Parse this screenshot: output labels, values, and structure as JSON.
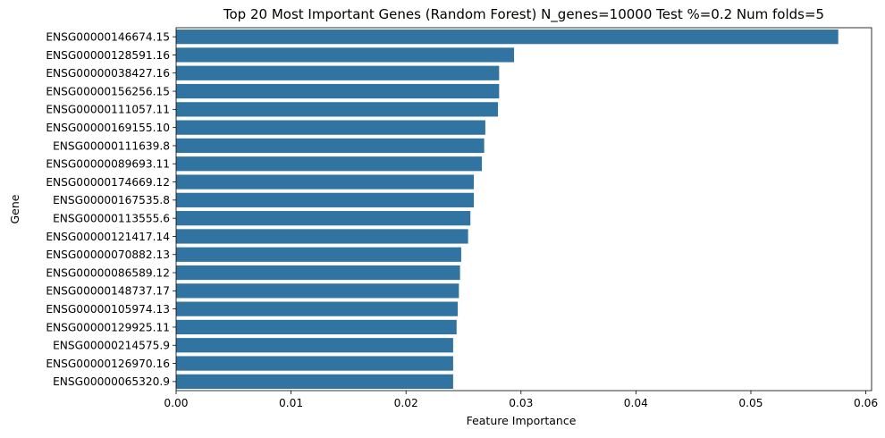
{
  "chart_data": {
    "type": "bar",
    "orientation": "horizontal",
    "title": "Top 20 Most Important Genes (Random Forest) N_genes=10000 Test %=0.2 Num folds=5",
    "xlabel": "Feature Importance",
    "ylabel": "Gene",
    "xlim": [
      0,
      0.0605
    ],
    "xticks": [
      "0.00",
      "0.01",
      "0.02",
      "0.03",
      "0.04",
      "0.05",
      "0.06"
    ],
    "xtick_values": [
      0,
      0.01,
      0.02,
      0.03,
      0.04,
      0.05,
      0.06
    ],
    "bar_color": "#3274a1",
    "grid": false,
    "categories": [
      "ENSG00000146674.15",
      "ENSG00000128591.16",
      "ENSG00000038427.16",
      "ENSG00000156256.15",
      "ENSG00000111057.11",
      "ENSG00000169155.10",
      "ENSG00000111639.8",
      "ENSG00000089693.11",
      "ENSG00000174669.12",
      "ENSG00000167535.8",
      "ENSG00000113555.6",
      "ENSG00000121417.14",
      "ENSG00000070882.13",
      "ENSG00000086589.12",
      "ENSG00000148737.17",
      "ENSG00000105974.13",
      "ENSG00000129925.11",
      "ENSG00000214575.9",
      "ENSG00000126970.16",
      "ENSG00000065320.9"
    ],
    "values": [
      0.0576,
      0.0294,
      0.0281,
      0.0281,
      0.028,
      0.0269,
      0.0268,
      0.0266,
      0.0259,
      0.0259,
      0.0256,
      0.0254,
      0.0248,
      0.0247,
      0.0246,
      0.0245,
      0.0244,
      0.0241,
      0.0241,
      0.0241
    ]
  }
}
